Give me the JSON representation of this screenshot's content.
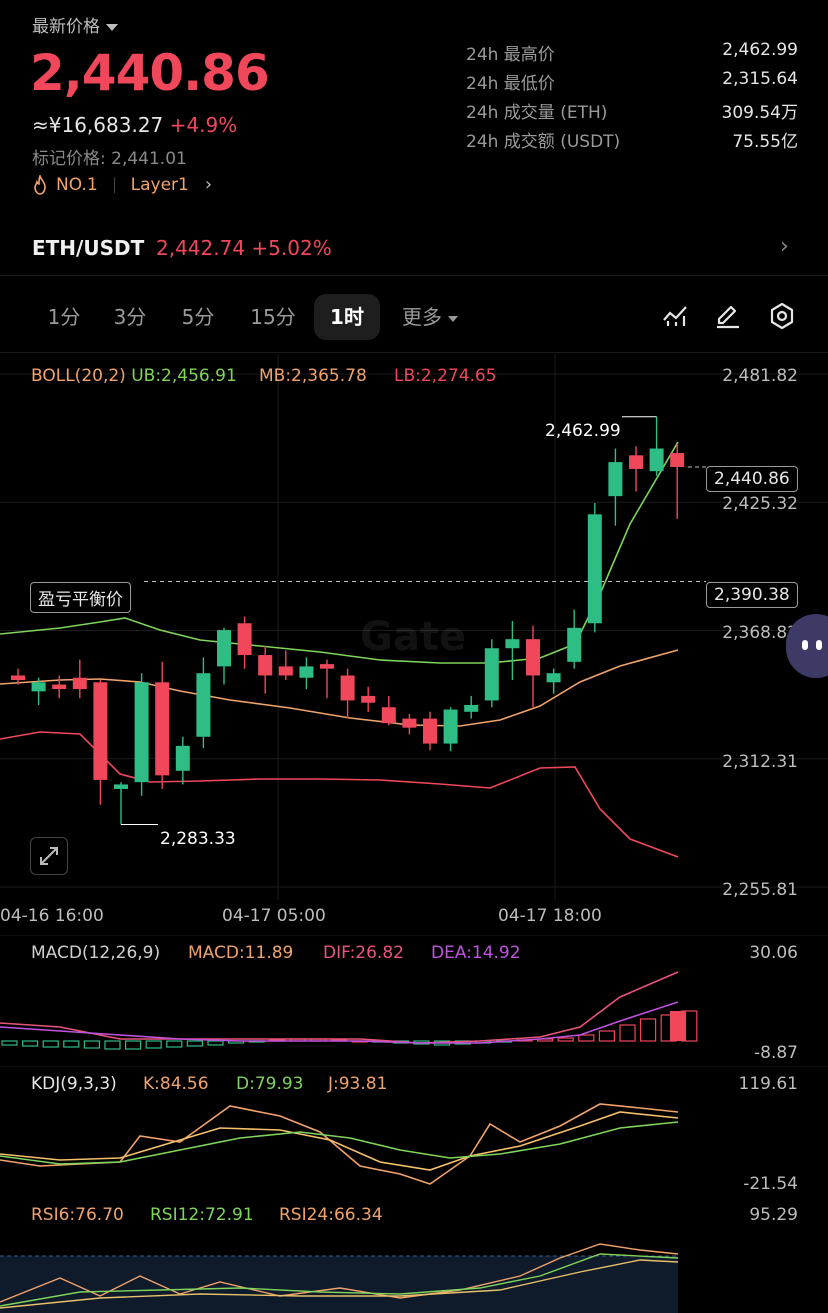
{
  "header": {
    "last_price_label": "最新价格",
    "last_price": "2,440.86",
    "cny_value": "≈¥16,683.27",
    "change_pct": "+4.9%",
    "mark_price": "标记价格: 2,441.01",
    "rank": "NO.1",
    "category": "Layer1"
  },
  "stats": [
    {
      "label": "24h 最高价",
      "value": "2,462.99"
    },
    {
      "label": "24h 最低价",
      "value": "2,315.64"
    },
    {
      "label": "24h 成交量 (ETH)",
      "value": "309.54万"
    },
    {
      "label": "24h 成交额 (USDT)",
      "value": "75.55亿"
    }
  ],
  "pair": {
    "name": "ETH/USDT",
    "price": "2,442.74",
    "change": "+5.02%"
  },
  "tabs": [
    "1分",
    "3分",
    "5分",
    "15分",
    "1时",
    "更多"
  ],
  "active_tab": "1时",
  "boll": {
    "label": "BOLL(20,2)",
    "ub": "UB:2,456.91",
    "mb": "MB:2,365.78",
    "lb": "LB:2,274.65"
  },
  "price_axis": [
    "2,481.82",
    "2,425.32",
    "2,368.82",
    "2,312.31",
    "2,255.81"
  ],
  "current_price_tag": "2,440.86",
  "breakeven": {
    "label": "盈亏平衡价",
    "value": "2,390.38"
  },
  "high_marker": "2,462.99",
  "low_marker": "2,283.33",
  "watermark": "Gate",
  "time_axis": [
    "04-16 16:00",
    "04-17 05:00",
    "04-17 18:00"
  ],
  "macd": {
    "label": "MACD(12,26,9)",
    "macd": "MACD:11.89",
    "dif": "DIF:26.82",
    "dea": "DEA:14.92",
    "axis_top": "30.06",
    "axis_bottom": "-8.87"
  },
  "kdj": {
    "label": "KDJ(9,3,3)",
    "k": "K:84.56",
    "d": "D:79.93",
    "j": "J:93.81",
    "axis_top": "119.61",
    "axis_bottom": "-21.54"
  },
  "rsi": {
    "rsi6": "RSI6:76.70",
    "rsi12": "RSI12:72.91",
    "rsi24": "RSI24:66.34",
    "axis_top": "95.29"
  },
  "colors": {
    "up": "#2ebd85",
    "down": "#f0475b",
    "ub": "#7fd45b",
    "mb": "#f0a36b",
    "lb": "#f0475b",
    "dea": "#c052e0"
  },
  "chart_data": {
    "type": "candlestick",
    "ylim": [
      2255.81,
      2481.82
    ],
    "candles": [
      {
        "o": 2349,
        "h": 2352,
        "l": 2345,
        "c": 2347
      },
      {
        "o": 2342,
        "h": 2348,
        "l": 2336,
        "c": 2346
      },
      {
        "o": 2345,
        "h": 2349,
        "l": 2339,
        "c": 2343
      },
      {
        "o": 2348,
        "h": 2356,
        "l": 2339,
        "c": 2343
      },
      {
        "o": 2346,
        "h": 2347,
        "l": 2292,
        "c": 2303
      },
      {
        "o": 2299,
        "h": 2302,
        "l": 2283.33,
        "c": 2301
      },
      {
        "o": 2302,
        "h": 2350,
        "l": 2296,
        "c": 2346
      },
      {
        "o": 2346,
        "h": 2355,
        "l": 2299,
        "c": 2305
      },
      {
        "o": 2307,
        "h": 2322,
        "l": 2301,
        "c": 2318
      },
      {
        "o": 2322,
        "h": 2357,
        "l": 2317,
        "c": 2350
      },
      {
        "o": 2353,
        "h": 2370,
        "l": 2345,
        "c": 2369
      },
      {
        "o": 2372,
        "h": 2375,
        "l": 2352,
        "c": 2358
      },
      {
        "o": 2358,
        "h": 2362,
        "l": 2341,
        "c": 2349
      },
      {
        "o": 2353,
        "h": 2360,
        "l": 2347,
        "c": 2349
      },
      {
        "o": 2348,
        "h": 2357,
        "l": 2343,
        "c": 2353
      },
      {
        "o": 2354,
        "h": 2356,
        "l": 2339,
        "c": 2352
      },
      {
        "o": 2349,
        "h": 2352,
        "l": 2330,
        "c": 2338
      },
      {
        "o": 2340,
        "h": 2344,
        "l": 2333,
        "c": 2337
      },
      {
        "o": 2335,
        "h": 2340,
        "l": 2327,
        "c": 2328
      },
      {
        "o": 2330,
        "h": 2332,
        "l": 2323,
        "c": 2326
      },
      {
        "o": 2330,
        "h": 2333,
        "l": 2316,
        "c": 2319
      },
      {
        "o": 2319,
        "h": 2335,
        "l": 2315.64,
        "c": 2334
      },
      {
        "o": 2333,
        "h": 2340,
        "l": 2330,
        "c": 2336
      },
      {
        "o": 2338,
        "h": 2365,
        "l": 2335,
        "c": 2361
      },
      {
        "o": 2361,
        "h": 2373,
        "l": 2347,
        "c": 2365
      },
      {
        "o": 2365,
        "h": 2371,
        "l": 2335,
        "c": 2349
      },
      {
        "o": 2346,
        "h": 2352,
        "l": 2341,
        "c": 2350
      },
      {
        "o": 2355,
        "h": 2378,
        "l": 2352,
        "c": 2370
      },
      {
        "o": 2372,
        "h": 2425,
        "l": 2368,
        "c": 2420
      },
      {
        "o": 2428,
        "h": 2449,
        "l": 2415,
        "c": 2443
      },
      {
        "o": 2446,
        "h": 2450,
        "l": 2430,
        "c": 2440
      },
      {
        "o": 2439,
        "h": 2462.99,
        "l": 2437,
        "c": 2449
      },
      {
        "o": 2447,
        "h": 2451,
        "l": 2418,
        "c": 2440.86
      }
    ]
  }
}
